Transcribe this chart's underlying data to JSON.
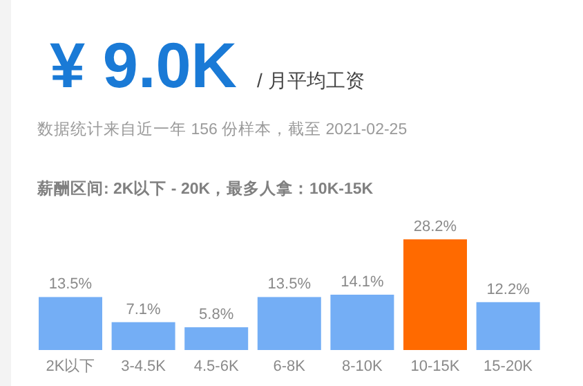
{
  "chart_data": {
    "type": "bar",
    "title": "¥ 9.0K",
    "subtitle": "/ 月平均工资",
    "annotations": [
      "数据统计来自近一年 156 份样本，截至 2021-02-25",
      "薪酬区间: 2K以下 - 20K，最多人拿：10K-15K"
    ],
    "categories": [
      "2K以下",
      "3-4.5K",
      "4.5-6K",
      "6-8K",
      "8-10K",
      "10-15K",
      "15-20K"
    ],
    "values": [
      13.5,
      7.1,
      5.8,
      13.5,
      14.1,
      28.2,
      12.2
    ],
    "value_labels": [
      "13.5%",
      "7.1%",
      "5.8%",
      "13.5%",
      "14.1%",
      "28.2%",
      "12.2%"
    ],
    "colors": [
      "#74aef5",
      "#74aef5",
      "#74aef5",
      "#74aef5",
      "#74aef5",
      "#ff6a00",
      "#74aef5"
    ]
  }
}
